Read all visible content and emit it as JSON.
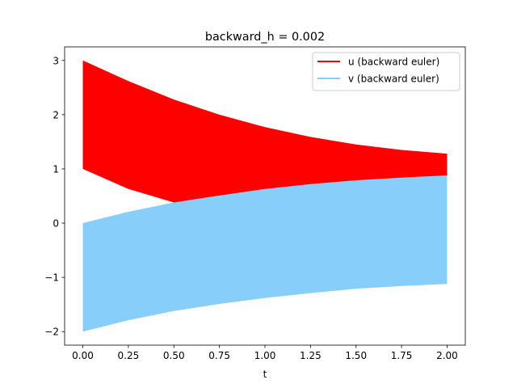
{
  "chart_data": {
    "type": "area",
    "title": "backward_h = 0.002",
    "xlabel": "t",
    "ylabel": "",
    "xlim": [
      -0.1,
      2.1
    ],
    "ylim": [
      -2.25,
      3.25
    ],
    "xticks": [
      0.0,
      0.25,
      0.5,
      0.75,
      1.0,
      1.25,
      1.5,
      1.75,
      2.0
    ],
    "xtick_labels": [
      "0.00",
      "0.25",
      "0.50",
      "0.75",
      "1.00",
      "1.25",
      "1.50",
      "1.75",
      "2.00"
    ],
    "yticks": [
      -2,
      -1,
      0,
      1,
      2,
      3
    ],
    "ytick_labels": [
      "−2",
      "−1",
      "0",
      "1",
      "2",
      "3"
    ],
    "grid": false,
    "legend_position": "upper right",
    "series": [
      {
        "name": "u (backward euler)",
        "color": "#ff0000",
        "x": [
          0.0,
          0.25,
          0.5,
          0.75,
          1.0,
          1.25,
          1.5,
          1.75,
          2.0
        ],
        "upper": [
          3.0,
          2.62,
          2.28,
          2.0,
          1.77,
          1.59,
          1.45,
          1.35,
          1.28
        ],
        "lower": [
          1.0,
          0.63,
          0.38,
          0.21,
          0.33,
          0.5,
          0.63,
          0.72,
          0.88
        ]
      },
      {
        "name": "v (backward euler)",
        "color": "#87cefa",
        "x": [
          0.0,
          0.25,
          0.5,
          0.75,
          1.0,
          1.25,
          1.5,
          1.75,
          2.0
        ],
        "upper": [
          0.0,
          0.21,
          0.38,
          0.51,
          0.63,
          0.72,
          0.79,
          0.84,
          0.88
        ],
        "lower": [
          -2.0,
          -1.79,
          -1.62,
          -1.49,
          -1.38,
          -1.29,
          -1.21,
          -1.16,
          -1.12
        ]
      }
    ]
  }
}
